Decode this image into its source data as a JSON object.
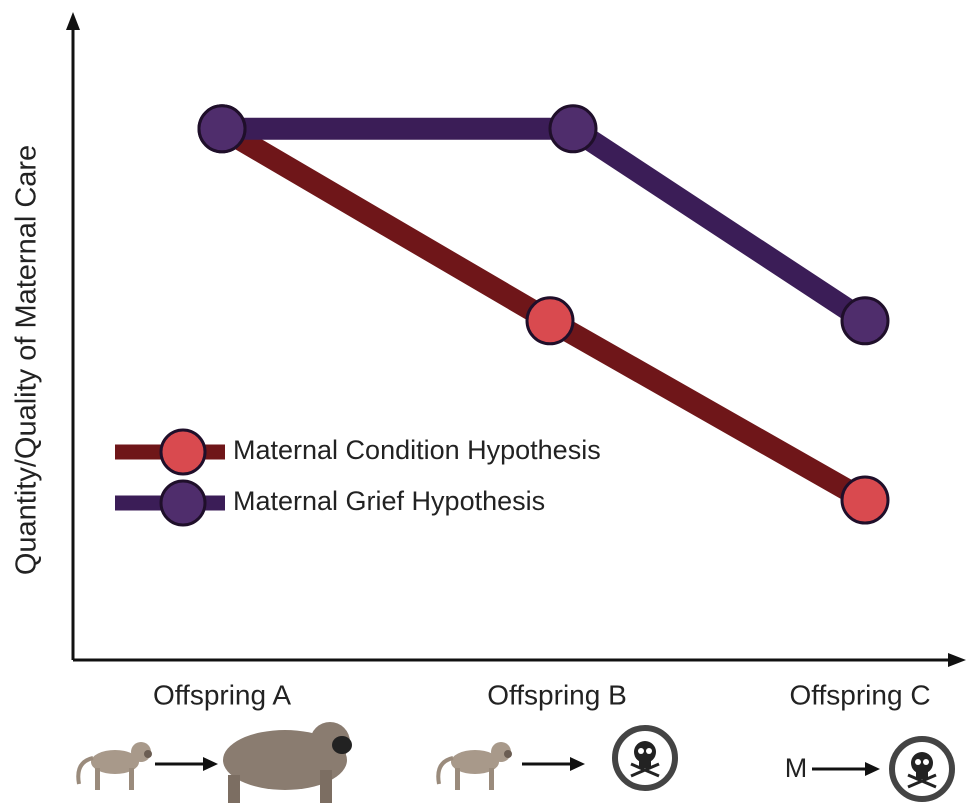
{
  "chart_data": {
    "type": "line",
    "y_label": "Quantity/Quality of Maternal Care",
    "categories": [
      "Offspring A",
      "Offspring B",
      "Offspring C"
    ],
    "ylim": [
      0,
      10
    ],
    "series": [
      {
        "name": "Maternal Condition Hypothesis",
        "color": "#6f1619",
        "marker_color": "#d94a4f",
        "values": [
          8.3,
          5.3,
          2.5
        ]
      },
      {
        "name": "Maternal Grief Hypothesis",
        "color": "#3b1d57",
        "marker_color": "#4f2d6c",
        "values": [
          8.3,
          8.3,
          5.3
        ]
      }
    ],
    "annotation": "M"
  }
}
